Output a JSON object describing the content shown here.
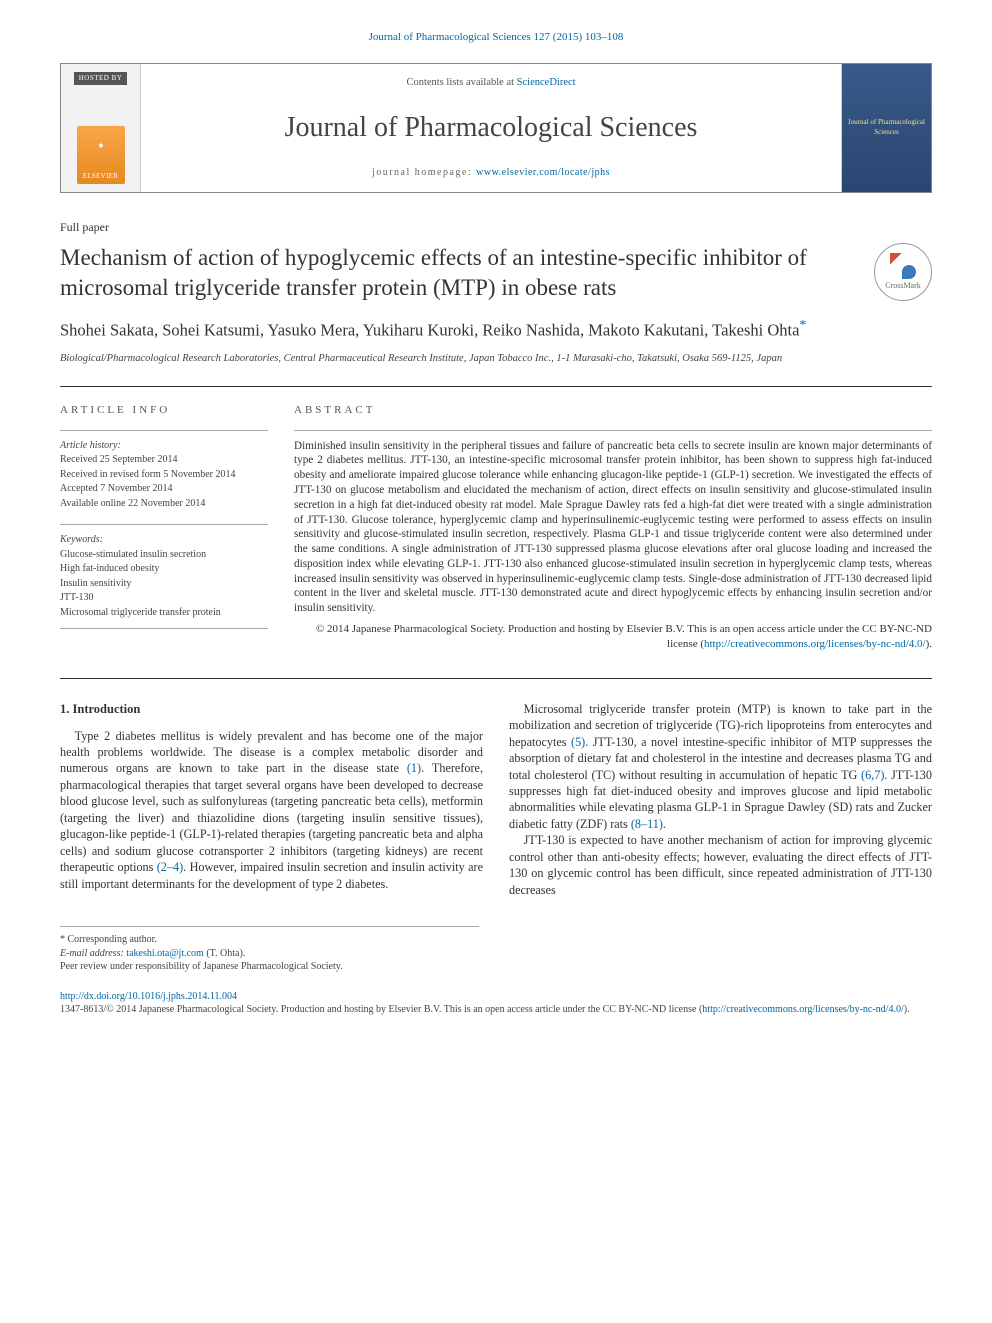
{
  "journal_ref": "Journal of Pharmacological Sciences 127 (2015) 103–108",
  "masthead": {
    "hosted_by": "HOSTED BY",
    "publisher": "ELSEVIER",
    "contents_prefix": "Contents lists available at ",
    "contents_link": "ScienceDirect",
    "journal_title": "Journal of Pharmacological Sciences",
    "homepage_prefix": "journal homepage: ",
    "homepage_url": "www.elsevier.com/locate/jphs",
    "cover_text": "Journal of Pharmacological Sciences"
  },
  "article_type": "Full paper",
  "title": "Mechanism of action of hypoglycemic effects of an intestine-specific inhibitor of microsomal triglyceride transfer protein (MTP) in obese rats",
  "crossmark_label": "CrossMark",
  "authors": "Shohei Sakata, Sohei Katsumi, Yasuko Mera, Yukiharu Kuroki, Reiko Nashida, Makoto Kakutani, Takeshi Ohta",
  "corr_mark": "*",
  "affiliation": "Biological/Pharmacological Research Laboratories, Central Pharmaceutical Research Institute, Japan Tobacco Inc., 1-1 Murasaki-cho, Takatsuki, Osaka 569-1125, Japan",
  "info": {
    "heading": "ARTICLE INFO",
    "history_label": "Article history:",
    "received": "Received 25 September 2014",
    "revised": "Received in revised form 5 November 2014",
    "accepted": "Accepted 7 November 2014",
    "online": "Available online 22 November 2014",
    "keywords_label": "Keywords:",
    "keywords": [
      "Glucose-stimulated insulin secretion",
      "High fat-induced obesity",
      "Insulin sensitivity",
      "JTT-130",
      "Microsomal triglyceride transfer protein"
    ]
  },
  "abstract": {
    "heading": "ABSTRACT",
    "text": "Diminished insulin sensitivity in the peripheral tissues and failure of pancreatic beta cells to secrete insulin are known major determinants of type 2 diabetes mellitus. JTT-130, an intestine-specific microsomal transfer protein inhibitor, has been shown to suppress high fat-induced obesity and ameliorate impaired glucose tolerance while enhancing glucagon-like peptide-1 (GLP-1) secretion. We investigated the effects of JTT-130 on glucose metabolism and elucidated the mechanism of action, direct effects on insulin sensitivity and glucose-stimulated insulin secretion in a high fat diet-induced obesity rat model. Male Sprague Dawley rats fed a high-fat diet were treated with a single administration of JTT-130. Glucose tolerance, hyperglycemic clamp and hyperinsulinemic-euglycemic testing were performed to assess effects on insulin sensitivity and glucose-stimulated insulin secretion, respectively. Plasma GLP-1 and tissue triglyceride content were also determined under the same conditions. A single administration of JTT-130 suppressed plasma glucose elevations after oral glucose loading and increased the disposition index while elevating GLP-1. JTT-130 also enhanced glucose-stimulated insulin secretion in hyperglycemic clamp tests, whereas increased insulin sensitivity was observed in hyperinsulinemic-euglycemic clamp tests. Single-dose administration of JTT-130 decreased lipid content in the liver and skeletal muscle. JTT-130 demonstrated acute and direct hypoglycemic effects by enhancing insulin secretion and/or insulin sensitivity.",
    "copyright": "© 2014 Japanese Pharmacological Society. Production and hosting by Elsevier B.V. This is an open access article under the CC BY-NC-ND license (",
    "license_url": "http://creativecommons.org/licenses/by-nc-nd/4.0/",
    "copyright_close": ")."
  },
  "body": {
    "section1_heading": "1. Introduction",
    "p1": "Type 2 diabetes mellitus is widely prevalent and has become one of the major health problems worldwide. The disease is a complex metabolic disorder and numerous organs are known to take part in the disease state ",
    "r1": "(1)",
    "p1b": ". Therefore, pharmacological therapies that target several organs have been developed to decrease blood glucose level, such as sulfonylureas (targeting pancreatic beta cells), metformin (targeting the liver) and thiazolidine dions (targeting insulin sensitive tissues), glucagon-like peptide-1 (GLP-1)-related therapies (targeting pancreatic beta and alpha cells) and sodium glucose cotransporter 2 inhibitors (targeting kidneys) are recent therapeutic options ",
    "r2": "(2–4)",
    "p1c": ". However, impaired insulin secretion and insulin activity are still important determinants for the development of type 2 diabetes.",
    "p2": "Microsomal triglyceride transfer protein (MTP) is known to take part in the mobilization and secretion of triglyceride (TG)-rich lipoproteins from enterocytes and hepatocytes ",
    "r3": "(5)",
    "p2b": ". JTT-130, a novel intestine-specific inhibitor of MTP suppresses the absorption of dietary fat and cholesterol in the intestine and decreases plasma TG and total cholesterol (TC) without resulting in accumulation of hepatic TG ",
    "r4": "(6,7)",
    "p2c": ". JTT-130 suppresses high fat diet-induced obesity and improves glucose and lipid metabolic abnormalities while elevating plasma GLP-1 in Sprague Dawley (SD) rats and Zucker diabetic fatty (ZDF) rats ",
    "r5": "(8–11)",
    "p2d": ".",
    "p3": "JTT-130 is expected to have another mechanism of action for improving glycemic control other than anti-obesity effects; however, evaluating the direct effects of JTT-130 on glycemic control has been difficult, since repeated administration of JTT-130 decreases"
  },
  "footer": {
    "corr_author": "* Corresponding author.",
    "email_label": "E-mail address: ",
    "email": "takeshi.ota@jt.com",
    "email_suffix": " (T. Ohta).",
    "peer_review": "Peer review under responsibility of Japanese Pharmacological Society."
  },
  "bottom": {
    "doi": "http://dx.doi.org/10.1016/j.jphs.2014.11.004",
    "issn_line": "1347-8613/© 2014 Japanese Pharmacological Society. Production and hosting by Elsevier B.V. This is an open access article under the CC BY-NC-ND license (",
    "license_url": "http://creativecommons.org/licenses/by-nc-nd/4.0/",
    "close": ")."
  },
  "colors": {
    "link": "#0066a1",
    "text": "#333333",
    "rule": "#333333",
    "light_rule": "#aaaaaa"
  },
  "typography": {
    "body_pt": 12,
    "title_pt": 23,
    "journal_title_pt": 28,
    "abstract_pt": 11,
    "info_pt": 10
  }
}
